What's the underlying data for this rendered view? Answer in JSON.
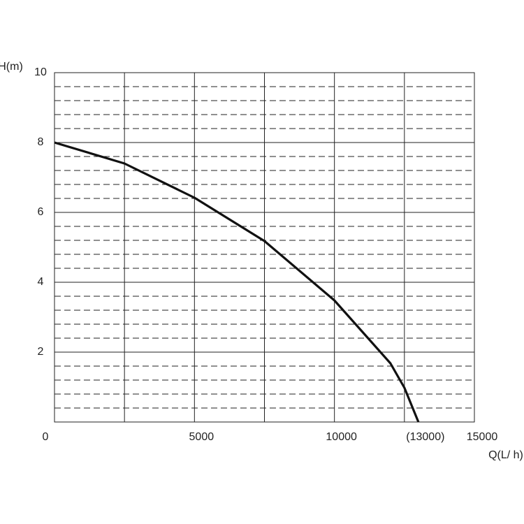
{
  "chart_data": {
    "type": "line",
    "y_label": "H(m)",
    "x_label": "Q(L/ h)",
    "x": [
      0,
      2500,
      5000,
      7500,
      10000,
      11000,
      12000,
      12500,
      13000
    ],
    "series": [
      {
        "color": "#111111",
        "values": [
          8,
          7.4,
          6.42,
          5.18,
          3.48,
          2.58,
          1.68,
          0.98,
          0
        ]
      }
    ],
    "xlim": [
      0,
      15000
    ],
    "ylim": [
      0,
      10
    ],
    "xticks": [
      0,
      5000,
      10000,
      {
        "value": 13000,
        "label": "(13000)"
      },
      15000
    ],
    "yticks": [
      2,
      4,
      6,
      8,
      10
    ],
    "xgrid": [
      0,
      2500,
      5000,
      7500,
      10000,
      12500,
      15000
    ],
    "yminor_step": 0.4,
    "grid": true
  }
}
